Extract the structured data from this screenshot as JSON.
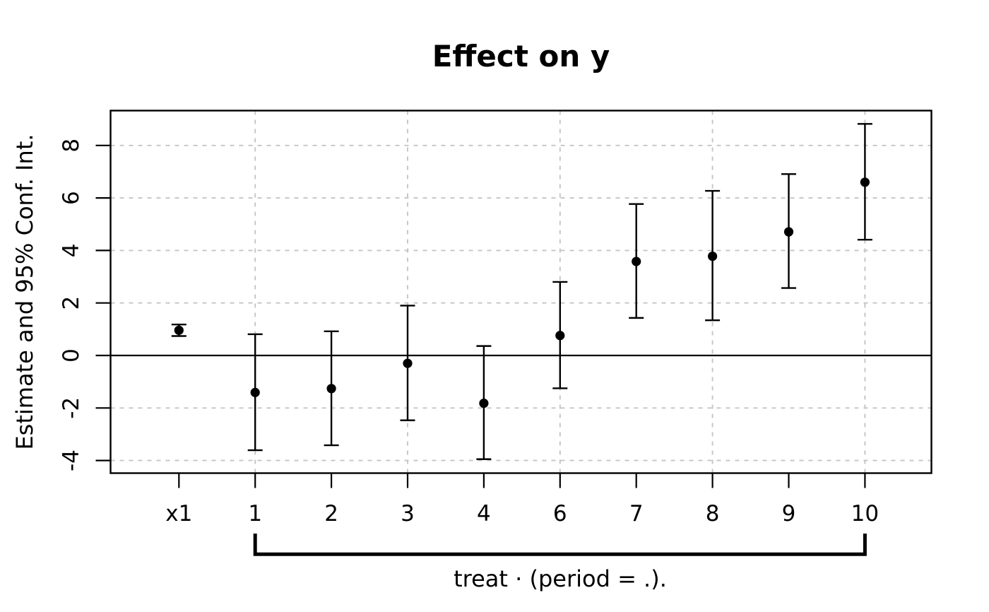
{
  "figure": {
    "background": "#ffffff",
    "foreground": "#000000"
  },
  "chart_data": {
    "type": "scatter",
    "subtype": "coefficient-plot-with-95ci-error-bars",
    "title": "Effect on y",
    "ylabel": "Estimate and 95% Conf. Int.",
    "xlabel": "",
    "categories": [
      "x1",
      "1",
      "2",
      "3",
      "4",
      "6",
      "7",
      "8",
      "9",
      "10"
    ],
    "series": [
      {
        "name": "estimate",
        "values": [
          0.96,
          -1.41,
          -1.26,
          -0.3,
          -1.82,
          0.76,
          3.58,
          3.78,
          4.71,
          6.6
        ]
      },
      {
        "name": "ci_low",
        "values": [
          0.74,
          -3.61,
          -3.42,
          -2.47,
          -3.95,
          -1.25,
          1.43,
          1.34,
          2.57,
          4.41
        ]
      },
      {
        "name": "ci_high",
        "values": [
          1.18,
          0.81,
          0.92,
          1.9,
          0.36,
          2.8,
          5.77,
          6.27,
          6.91,
          8.82
        ]
      }
    ],
    "yticks": [
      8,
      6,
      4,
      2,
      0,
      -2,
      -4
    ],
    "ytick_labels": [
      "8",
      "6",
      "4",
      "2",
      "0",
      "-2",
      "-4"
    ],
    "ylim": [
      -4.45,
      9.35
    ],
    "zero_line_at": 0,
    "grid": {
      "style": "dotted",
      "color": "#c5c5c5",
      "horizontal_at": [
        8,
        6,
        4,
        2,
        -2,
        -4
      ],
      "vertical_at_categories": [
        "1",
        "3",
        "6",
        "8",
        "10"
      ]
    },
    "legend_position": "none",
    "marker": {
      "shape": "filled-circle",
      "color": "#000000"
    },
    "bracket": {
      "from_category": "1",
      "to_category": "10",
      "label": "treat · (period = .)."
    }
  }
}
